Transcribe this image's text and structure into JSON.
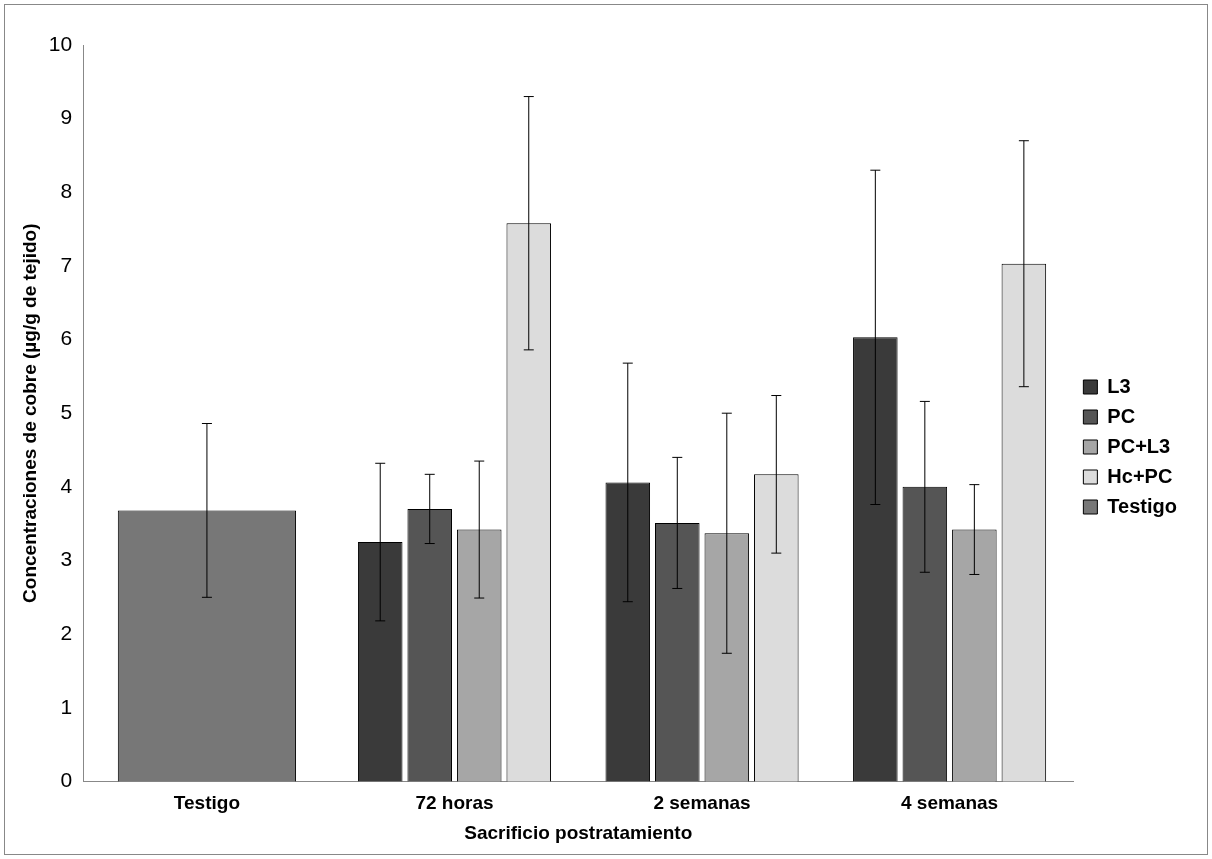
{
  "chart_data": {
    "type": "bar",
    "xlabel": "Sacrificio postratamiento",
    "ylabel": "Concentraciones de cobre (µg/g de tejido)",
    "categories": [
      "Testigo",
      "72 horas",
      "2 semanas",
      "4 semanas"
    ],
    "series": [
      {
        "name": "L3",
        "color": "#3a3a3a",
        "values": [
          null,
          3.25,
          4.06,
          6.03
        ],
        "errors": [
          null,
          1.07,
          1.62,
          2.27
        ]
      },
      {
        "name": "PC",
        "color": "#555555",
        "values": [
          null,
          3.7,
          3.51,
          4.0
        ],
        "errors": [
          null,
          0.47,
          0.89,
          1.16
        ]
      },
      {
        "name": "PC+L3",
        "color": "#a6a6a6",
        "values": [
          null,
          3.42,
          3.37,
          3.42
        ],
        "errors": [
          null,
          0.93,
          1.63,
          0.61
        ]
      },
      {
        "name": "Hc+PC",
        "color": "#dcdcdc",
        "values": [
          null,
          7.58,
          4.17,
          7.03
        ],
        "errors": [
          null,
          1.72,
          1.07,
          1.67
        ]
      },
      {
        "name": "Testigo",
        "color": "#777777",
        "values": [
          3.68,
          null,
          null,
          null
        ],
        "errors": [
          1.18,
          null,
          null,
          null
        ]
      }
    ],
    "ylim": [
      0,
      10
    ],
    "yticks": [
      0,
      1,
      2,
      3,
      4,
      5,
      6,
      7,
      8,
      9,
      10
    ],
    "grid": false,
    "legend": "right"
  }
}
